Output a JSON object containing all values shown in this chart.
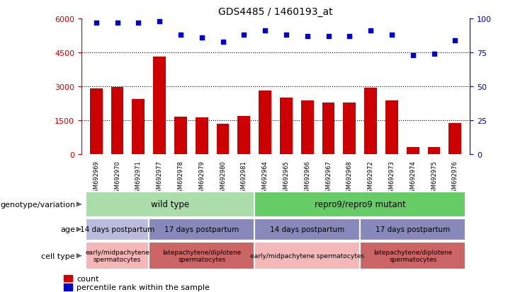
{
  "title": "GDS4485 / 1460193_at",
  "samples": [
    "GSM692969",
    "GSM692970",
    "GSM692971",
    "GSM692977",
    "GSM692978",
    "GSM692979",
    "GSM692980",
    "GSM692981",
    "GSM692964",
    "GSM692965",
    "GSM692966",
    "GSM692967",
    "GSM692968",
    "GSM692972",
    "GSM692973",
    "GSM692974",
    "GSM692975",
    "GSM692976"
  ],
  "counts": [
    2900,
    2980,
    2450,
    4300,
    1680,
    1620,
    1350,
    1700,
    2820,
    2500,
    2380,
    2280,
    2300,
    2950,
    2380,
    310,
    340,
    1380
  ],
  "percentile_ranks": [
    97,
    97,
    97,
    98,
    88,
    86,
    83,
    88,
    91,
    88,
    87,
    87,
    87,
    91,
    88,
    73,
    74,
    84
  ],
  "bar_color": "#cc0000",
  "dot_color": "#0000cc",
  "ylim_left": [
    0,
    6000
  ],
  "ylim_right": [
    0,
    100
  ],
  "yticks_left": [
    0,
    1500,
    3000,
    4500,
    6000
  ],
  "yticks_right": [
    0,
    25,
    50,
    75,
    100
  ],
  "grid_lines": [
    1500,
    3000,
    4500
  ],
  "background_color": "#ffffff",
  "plot_bg_color": "#ffffff",
  "xticklabel_bg": "#d0d0d0",
  "genotype_row": {
    "label": "genotype/variation",
    "segments": [
      {
        "text": "wild type",
        "start": 0,
        "end": 8,
        "color": "#aaddaa"
      },
      {
        "text": "repro9/repro9 mutant",
        "start": 8,
        "end": 18,
        "color": "#66cc66"
      }
    ]
  },
  "age_row": {
    "label": "age",
    "segments": [
      {
        "text": "14 days postpartum",
        "start": 0,
        "end": 3,
        "color": "#bbbbdd"
      },
      {
        "text": "17 days postpartum",
        "start": 3,
        "end": 8,
        "color": "#8888bb"
      },
      {
        "text": "14 days postpartum",
        "start": 8,
        "end": 13,
        "color": "#8888bb"
      },
      {
        "text": "17 days postpartum",
        "start": 13,
        "end": 18,
        "color": "#8888bb"
      }
    ]
  },
  "celltype_row": {
    "label": "cell type",
    "segments": [
      {
        "text": "early/midpachytene\nspermatocytes",
        "start": 0,
        "end": 3,
        "color": "#f4b8b8"
      },
      {
        "text": "latepachytene/diplotene\nspermatocytes",
        "start": 3,
        "end": 8,
        "color": "#cc6666"
      },
      {
        "text": "early/midpachytene spermatocytes",
        "start": 8,
        "end": 13,
        "color": "#f4b8b8"
      },
      {
        "text": "latepachytene/diplotene\nspermatocytes",
        "start": 13,
        "end": 18,
        "color": "#cc6666"
      }
    ]
  },
  "legend": [
    {
      "color": "#cc0000",
      "label": "count"
    },
    {
      "color": "#0000cc",
      "label": "percentile rank within the sample"
    }
  ]
}
